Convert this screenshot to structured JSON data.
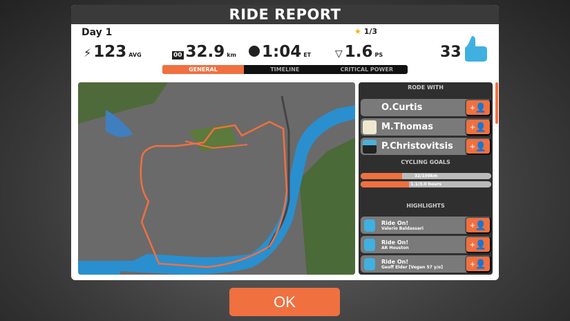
{
  "title": "RIDE REPORT",
  "day": "Day 1",
  "stats": [
    {
      "icon": "power-icon",
      "value": "123",
      "unit": "AVG"
    },
    {
      "icon": "odometer-icon",
      "value": "32.9",
      "unit": "km"
    },
    {
      "icon": "clock-icon",
      "value": "1:04",
      "unit": "ET"
    },
    {
      "icon": "pizza-icon",
      "value": "1.6",
      "unit": "PS"
    }
  ],
  "stars": "1/3",
  "ride_ons": "33",
  "tabs": [
    "GENERAL",
    "TIMELINE",
    "CRITICAL POWER"
  ],
  "active_tab": "GENERAL",
  "rode_with": {
    "header": "RODE WITH",
    "riders": [
      "O.Curtis",
      "M.Thomas",
      "P.Christovitsis"
    ]
  },
  "goals": {
    "header": "CYCLING GOALS",
    "items": [
      {
        "label": "32/100km",
        "progress": 0.32
      },
      {
        "label": "1.1/3.0 hours",
        "progress": 0.37
      }
    ]
  },
  "highlights": {
    "header": "HIGHLIGHTS",
    "items": [
      {
        "title": "Ride On!",
        "name": "Valerio Baldassari"
      },
      {
        "title": "Ride On!",
        "name": "AR Houston"
      },
      {
        "title": "Ride On!",
        "name": "Geoff Elder [Vegan 57 y/o]"
      }
    ]
  },
  "ok_label": "OK",
  "colors": {
    "accent": "#f07040",
    "thumb": "#3fb0e0",
    "route": "#f07040",
    "river": "#2a8fcf"
  }
}
